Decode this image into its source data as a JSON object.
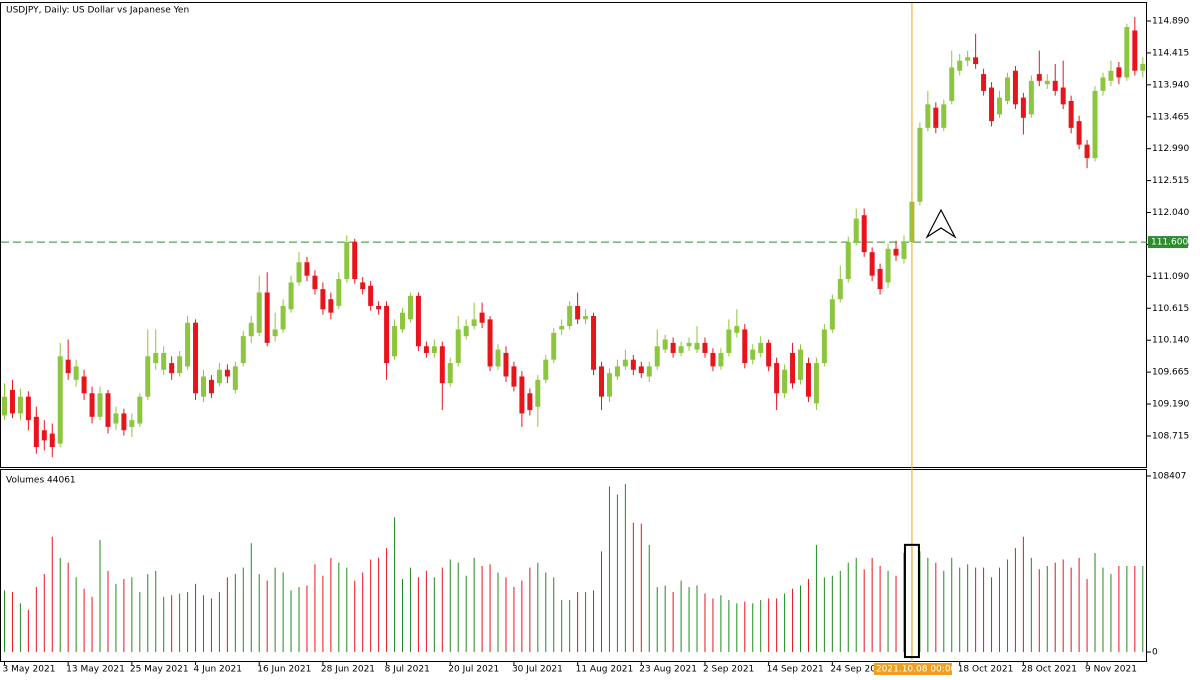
{
  "chart_data": {
    "type": "candlestick",
    "title": "USDJPY, Daily:  US Dollar vs Japanese Yen",
    "x": [
      "3 May 2021",
      null,
      null,
      null,
      null,
      null,
      null,
      null,
      "13 May 2021",
      null,
      null,
      null,
      null,
      null,
      null,
      null,
      "25 May 2021",
      null,
      null,
      null,
      null,
      null,
      null,
      null,
      "4 Jun 2021",
      null,
      null,
      null,
      null,
      null,
      null,
      null,
      "16 Jun 2021",
      null,
      null,
      null,
      null,
      null,
      null,
      null,
      "28 Jun 2021",
      null,
      null,
      null,
      null,
      null,
      null,
      null,
      "8 Jul 2021",
      null,
      null,
      null,
      null,
      null,
      null,
      null,
      "20 Jul 2021",
      null,
      null,
      null,
      null,
      null,
      null,
      null,
      "30 Jul 2021",
      null,
      null,
      null,
      null,
      null,
      null,
      null,
      "11 Aug 2021",
      null,
      null,
      null,
      null,
      null,
      null,
      null,
      "23 Aug 2021",
      null,
      null,
      null,
      null,
      null,
      null,
      null,
      "2 Sep 2021",
      null,
      null,
      null,
      null,
      null,
      null,
      null,
      "14 Sep 2021",
      null,
      null,
      null,
      null,
      null,
      null,
      null,
      "24 Sep 2021",
      null,
      null,
      null,
      null,
      null,
      null,
      null,
      null,
      null,
      "2021.10.08 00:00",
      null,
      null,
      null,
      null,
      null,
      "18 Oct 2021",
      null,
      null,
      null,
      null,
      null,
      null,
      null,
      "28 Oct 2021",
      null,
      null,
      null,
      null,
      null,
      null,
      null,
      "9 Nov 2021",
      null,
      null,
      null,
      null,
      null,
      null,
      null
    ],
    "open": [
      109.02,
      109.4,
      109.05,
      109.3,
      109.0,
      108.8,
      108.75,
      108.6,
      109.85,
      109.55,
      109.6,
      109.35,
      109.0,
      109.35,
      108.9,
      109.05,
      108.85,
      108.9,
      109.3,
      109.8,
      109.7,
      109.8,
      109.65,
      109.75,
      110.4,
      109.3,
      109.55,
      109.5,
      109.7,
      109.4,
      109.8,
      110.2,
      110.25,
      110.85,
      110.2,
      110.3,
      110.6,
      111.0,
      111.3,
      111.1,
      110.9,
      110.75,
      110.65,
      111.05,
      111.6,
      111.0,
      110.95,
      110.65,
      110.65,
      109.9,
      110.3,
      110.45,
      110.8,
      110.05,
      109.95,
      110.05,
      109.5,
      109.8,
      110.2,
      110.35,
      110.55,
      110.45,
      109.75,
      109.95,
      109.75,
      109.6,
      109.35,
      109.15,
      109.55,
      109.85,
      110.3,
      110.35,
      110.65,
      110.45,
      110.5,
      109.75,
      109.3,
      109.6,
      109.75,
      109.85,
      109.75,
      109.6,
      109.75,
      110.0,
      110.1,
      109.95,
      110.05,
      110.0,
      110.1,
      109.95,
      109.75,
      109.95,
      110.25,
      110.3,
      109.85,
      109.95,
      110.1,
      109.8,
      109.35,
      109.95,
      109.55,
      109.8,
      109.2,
      109.8,
      110.3,
      110.75,
      111.05,
      111.6,
      112.0,
      111.45,
      111.2,
      111.0,
      111.5,
      111.35,
      111.6,
      112.2,
      113.3,
      113.6,
      113.3,
      113.7,
      114.15,
      114.3,
      114.35,
      114.1,
      113.9,
      113.5,
      113.7,
      114.15,
      113.75,
      113.5,
      114.1,
      113.95,
      114.0,
      113.9,
      113.7,
      113.4,
      113.05,
      112.85,
      113.85,
      114.0,
      114.2,
      114.05,
      114.75,
      114.15
    ],
    "high": [
      109.5,
      109.55,
      109.42,
      109.38,
      109.15,
      108.95,
      108.9,
      110.1,
      110.15,
      109.85,
      109.7,
      109.45,
      109.45,
      109.4,
      109.15,
      109.12,
      109.05,
      109.35,
      110.3,
      110.3,
      110.05,
      109.9,
      109.98,
      110.5,
      110.45,
      109.7,
      109.62,
      109.8,
      109.78,
      109.82,
      110.28,
      110.5,
      111.1,
      111.15,
      110.55,
      110.75,
      111.1,
      111.45,
      111.38,
      111.18,
      111.0,
      110.85,
      111.15,
      111.7,
      111.65,
      111.08,
      111.02,
      110.72,
      110.72,
      110.45,
      110.62,
      110.85,
      110.85,
      110.12,
      110.15,
      110.12,
      109.88,
      110.5,
      110.45,
      110.7,
      110.7,
      110.5,
      110.08,
      110.05,
      109.82,
      109.68,
      109.42,
      109.62,
      109.92,
      110.32,
      110.45,
      110.72,
      110.85,
      110.6,
      110.55,
      109.82,
      109.72,
      109.85,
      110.0,
      109.92,
      109.82,
      109.82,
      110.3,
      110.22,
      110.18,
      110.12,
      110.18,
      110.35,
      110.18,
      110.02,
      110.02,
      110.45,
      110.6,
      110.38,
      110.08,
      110.2,
      110.15,
      109.88,
      109.78,
      110.1,
      110.08,
      109.88,
      109.88,
      110.38,
      110.82,
      111.25,
      111.68,
      112.1,
      112.1,
      111.52,
      111.28,
      111.58,
      111.62,
      111.7,
      112.28,
      113.38,
      113.85,
      113.68,
      113.72,
      114.45,
      114.4,
      114.45,
      114.7,
      114.18,
      113.98,
      113.85,
      114.12,
      114.22,
      113.82,
      114.08,
      114.45,
      114.1,
      114.25,
      114.3,
      113.78,
      113.48,
      113.12,
      113.92,
      114.12,
      114.3,
      114.28,
      114.85,
      114.95,
      114.35
    ],
    "low": [
      108.95,
      108.98,
      108.95,
      108.8,
      108.45,
      108.5,
      108.4,
      108.55,
      109.55,
      109.45,
      109.25,
      108.9,
      108.95,
      108.75,
      108.8,
      108.72,
      108.7,
      108.85,
      109.25,
      109.7,
      109.62,
      109.55,
      109.6,
      109.7,
      109.25,
      109.22,
      109.28,
      109.45,
      109.5,
      109.35,
      109.75,
      110.1,
      110.2,
      110.05,
      110.12,
      110.25,
      110.55,
      110.95,
      111.02,
      110.82,
      110.52,
      110.45,
      110.6,
      111.0,
      110.98,
      110.82,
      110.58,
      110.52,
      109.55,
      109.85,
      110.25,
      110.4,
      109.98,
      109.88,
      109.88,
      109.1,
      109.45,
      109.75,
      110.15,
      110.3,
      110.32,
      109.68,
      109.7,
      109.52,
      109.38,
      108.85,
      109.02,
      108.85,
      109.5,
      109.8,
      110.22,
      110.3,
      110.38,
      110.38,
      109.62,
      109.1,
      109.22,
      109.55,
      109.7,
      109.62,
      109.58,
      109.52,
      109.7,
      109.95,
      109.88,
      109.9,
      109.98,
      109.95,
      109.88,
      109.68,
      109.7,
      109.9,
      110.18,
      109.72,
      109.78,
      109.88,
      109.68,
      109.1,
      109.28,
      109.42,
      109.48,
      109.22,
      109.1,
      109.75,
      110.25,
      110.7,
      111.0,
      111.55,
      111.38,
      111.02,
      110.82,
      110.92,
      111.32,
      111.28,
      111.55,
      112.15,
      113.25,
      113.22,
      113.25,
      113.65,
      114.08,
      114.22,
      114.18,
      113.78,
      113.32,
      113.45,
      113.65,
      113.58,
      113.2,
      113.45,
      113.92,
      113.88,
      113.78,
      113.58,
      113.22,
      112.98,
      112.7,
      112.8,
      113.78,
      113.92,
      113.95,
      114.0,
      114.08,
      114.05
    ],
    "close": [
      109.3,
      109.05,
      109.3,
      108.95,
      108.55,
      108.65,
      108.55,
      109.9,
      109.65,
      109.75,
      109.35,
      109.0,
      109.35,
      108.85,
      109.05,
      108.8,
      108.95,
      109.3,
      109.9,
      109.95,
      109.95,
      109.65,
      109.9,
      110.4,
      109.35,
      109.6,
      109.35,
      109.7,
      109.6,
      109.75,
      110.2,
      110.4,
      110.85,
      110.1,
      110.3,
      110.65,
      111.0,
      111.3,
      111.1,
      110.9,
      110.6,
      110.55,
      111.05,
      111.6,
      111.05,
      110.9,
      110.65,
      110.6,
      109.8,
      110.35,
      110.55,
      110.8,
      110.05,
      109.95,
      110.05,
      109.5,
      109.8,
      110.3,
      110.35,
      110.45,
      110.4,
      109.75,
      110.0,
      109.6,
      109.45,
      109.05,
      109.1,
      109.55,
      109.85,
      110.25,
      110.35,
      110.65,
      110.45,
      110.5,
      109.7,
      109.3,
      109.65,
      109.75,
      109.85,
      109.7,
      109.65,
      109.75,
      110.05,
      110.15,
      109.95,
      110.05,
      110.1,
      110.1,
      109.95,
      109.75,
      109.95,
      110.3,
      110.35,
      109.8,
      110.0,
      110.1,
      109.75,
      109.35,
      109.7,
      109.5,
      110.0,
      109.3,
      109.8,
      110.3,
      110.75,
      111.05,
      111.6,
      111.95,
      111.45,
      111.1,
      110.9,
      111.5,
      111.4,
      111.6,
      112.2,
      113.3,
      113.65,
      113.3,
      113.65,
      114.2,
      114.3,
      114.35,
      114.25,
      113.85,
      113.4,
      113.75,
      114.05,
      113.65,
      113.45,
      114.0,
      114.0,
      114.0,
      113.85,
      113.65,
      113.3,
      113.05,
      112.85,
      113.85,
      114.05,
      114.15,
      114.05,
      114.8,
      114.15,
      114.25
    ],
    "up_color": "#8cc63f",
    "down_color": "#e8141c",
    "ylim": [
      108.253,
      115.158
    ],
    "yticks": [
      108.715,
      {
        "value": 109.19,
        "label": "109.190"
      },
      109.665,
      {
        "value": 110.14,
        "label": "110.140"
      },
      110.615,
      {
        "value": 111.09,
        "label": "111.090"
      },
      111.565,
      {
        "value": 112.04,
        "label": "112.040"
      },
      112.515,
      {
        "value": 112.99,
        "label": "112.990"
      },
      113.465,
      {
        "value": 113.94,
        "label": "113.940"
      },
      114.415,
      {
        "value": 114.89,
        "label": "114.890"
      }
    ],
    "reference_line": {
      "value": 111.6,
      "label": "111.600",
      "color": "#2e8b2e"
    },
    "volume": {
      "label": "Volumes 44061",
      "values": [
        38000,
        37000,
        30000,
        26000,
        40000,
        48000,
        71000,
        58000,
        55000,
        46000,
        39000,
        34000,
        69000,
        50000,
        42000,
        45000,
        46000,
        37000,
        48000,
        50000,
        34000,
        35000,
        36000,
        37000,
        42000,
        35000,
        33000,
        37000,
        46000,
        48000,
        52000,
        67000,
        48000,
        44000,
        52000,
        49000,
        38000,
        40000,
        41000,
        54000,
        47000,
        58000,
        55000,
        52000,
        44000,
        49000,
        57000,
        58000,
        64000,
        83000,
        45000,
        52000,
        46000,
        50000,
        46000,
        52000,
        57000,
        55000,
        47000,
        58000,
        53000,
        54000,
        49000,
        46000,
        40000,
        44000,
        52000,
        55000,
        49000,
        46000,
        32000,
        32000,
        37000,
        37000,
        38000,
        62000,
        102000,
        97000,
        103500,
        79600,
        79000,
        66000,
        40000,
        41000,
        37000,
        44000,
        40000,
        41000,
        36000,
        33000,
        35000,
        32000,
        30000,
        31000,
        30000,
        32000,
        33000,
        33000,
        36000,
        39000,
        41000,
        45000,
        66000,
        46000,
        47000,
        50000,
        55000,
        58000,
        51000,
        58000,
        53000,
        50000,
        47000,
        61000,
        66000,
        62000,
        58000,
        55000,
        50000,
        58000,
        52000,
        54000,
        52000,
        52000,
        46000,
        52000,
        57000,
        64000,
        71000,
        58000,
        51000,
        53000,
        55000,
        57000,
        52000,
        58000,
        45000,
        61000,
        52000,
        48000,
        53000,
        53000,
        53000,
        53000
      ],
      "ylim": [
        -6125,
        112082
      ],
      "yticks": [
        0,
        108407
      ],
      "up_color": "#1f8a1f",
      "down_color": "#e8141c"
    }
  }
}
